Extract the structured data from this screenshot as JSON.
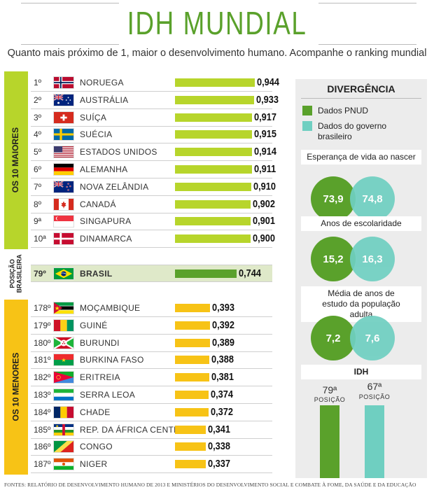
{
  "title": "IDH MUNDIAL",
  "subtitle": "Quanto mais próximo de 1, maior o desenvolvimento humano. Acompanhe o ranking mundial",
  "colors": {
    "top_bar": "#b7d52b",
    "bottom_bar": "#f7c316",
    "brazil_bar": "#5aa12b",
    "sidebar_orange": "#f7c316",
    "sidebar_green": "#b7d52b",
    "pnud": "#5aa12b",
    "gov": "#6fcfc1",
    "title": "#5aa12b"
  },
  "sidebars": {
    "top": "OS 10 MAIORES",
    "brazil": "POSIÇÃO BRASILEIRA",
    "bottom": "OS 10 MENORES"
  },
  "chart_data": [
    {
      "type": "bar",
      "title": "OS 10 MAIORES",
      "categories": [
        "NORUEGA",
        "AUSTRÁLIA",
        "SUÍÇA",
        "SUÉCIA",
        "ESTADOS UNIDOS",
        "ALEMANHA",
        "NOVA ZELÂNDIA",
        "CANADÁ",
        "SINGAPURA",
        "DINAMARCA"
      ],
      "ranks": [
        "1º",
        "2º",
        "3º",
        "4º",
        "5º",
        "6º",
        "7º",
        "8º",
        "9ª",
        "10ª"
      ],
      "flags": [
        "norway-flag-icon",
        "australia-flag-icon",
        "switzerland-flag-icon",
        "sweden-flag-icon",
        "usa-flag-icon",
        "germany-flag-icon",
        "new-zealand-flag-icon",
        "canada-flag-icon",
        "singapore-flag-icon",
        "denmark-flag-icon"
      ],
      "values": [
        0.944,
        0.933,
        0.917,
        0.915,
        0.914,
        0.911,
        0.91,
        0.902,
        0.901,
        0.9
      ],
      "labels": [
        "0,944",
        "0,933",
        "0,917",
        "0,915",
        "0,914",
        "0,911",
        "0,910",
        "0,902",
        "0,901",
        "0,900"
      ]
    },
    {
      "type": "bar",
      "title": "POSIÇÃO BRASILEIRA",
      "categories": [
        "BRASIL"
      ],
      "ranks": [
        "79º"
      ],
      "flags": [
        "brazil-flag-icon"
      ],
      "values": [
        0.744
      ],
      "labels": [
        "0,744"
      ]
    },
    {
      "type": "bar",
      "title": "OS 10 MENORES",
      "categories": [
        "MOÇAMBIQUE",
        "GUINÉ",
        "BURUNDI",
        "BURKINA FASO",
        "ERITREIA",
        "SERRA LEOA",
        "CHADE",
        "REP. DA ÁFRICA CENTRAL",
        "CONGO",
        "NIGER"
      ],
      "ranks": [
        "178º",
        "179º",
        "180º",
        "181º",
        "182º",
        "183º",
        "184º",
        "185º",
        "186º",
        "187º"
      ],
      "flags": [
        "mozambique-flag-icon",
        "guinea-flag-icon",
        "burundi-flag-icon",
        "burkina-faso-flag-icon",
        "eritrea-flag-icon",
        "sierra-leone-flag-icon",
        "chad-flag-icon",
        "car-flag-icon",
        "congo-flag-icon",
        "niger-flag-icon"
      ],
      "values": [
        0.393,
        0.392,
        0.389,
        0.388,
        0.381,
        0.374,
        0.372,
        0.341,
        0.338,
        0.337
      ],
      "labels": [
        "0,393",
        "0,392",
        "0,389",
        "0,388",
        "0,381",
        "0,374",
        "0,372",
        "0,341",
        "0,338",
        "0,337"
      ]
    },
    {
      "type": "bar",
      "title": "IDH",
      "categories": [
        "Dados PNUD",
        "Dados do governo brasileiro"
      ],
      "values": [
        79,
        67
      ],
      "labels": [
        "79ª",
        "67ª"
      ],
      "sublabel": "POSIÇÃO"
    }
  ],
  "panel": {
    "title": "DIVERGÊNCIA",
    "legend_pnud": "Dados PNUD",
    "legend_gov": "Dados do governo brasileiro",
    "sections": [
      {
        "label": "Esperança de vida ao nascer",
        "pnud": "73,9",
        "gov": "74,8"
      },
      {
        "label": "Anos de escolaridade",
        "pnud": "15,2",
        "gov": "16,3"
      },
      {
        "label": "Média de anos de estudo da população adulta",
        "pnud": "7,2",
        "gov": "7,6"
      }
    ],
    "idh_title": "IDH",
    "idh_pnud_rank": "79ª",
    "idh_gov_rank": "67ª",
    "idh_pos_label": "POSIÇÃO"
  },
  "footer": "FONTES: RELATÓRIO DE DESENVOLVIMENTO HUMANO DE 2013 E MINISTÉRIOS DO DESENVOLVIMENTO SOCIAL E COMBATE À FOME, DA SAÚDE E DA EDUCAÇÃO"
}
